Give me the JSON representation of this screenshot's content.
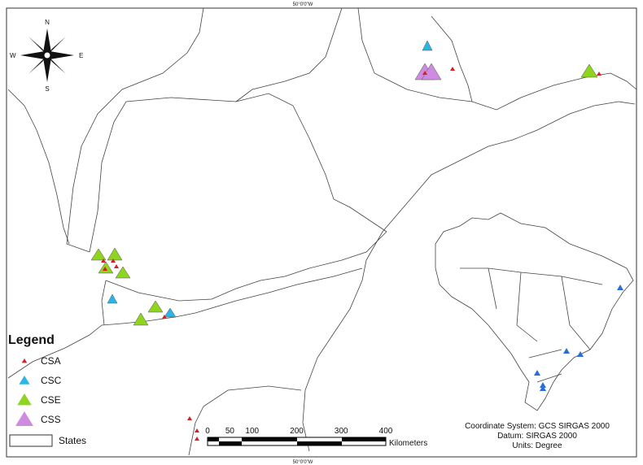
{
  "top_label": "50°0'0\"W",
  "bottom_label": "50°0'0\"W",
  "compass": {
    "n": "N",
    "s": "S",
    "e": "E",
    "w": "W"
  },
  "legend": {
    "title": "Legend",
    "items": [
      {
        "label": "CSA",
        "color": "#d62020"
      },
      {
        "label": "CSC",
        "color": "#29b6e6"
      },
      {
        "label": "CSE",
        "color": "#8fd41e"
      },
      {
        "label": "CSS",
        "color": "#cf8be0"
      }
    ],
    "states": "States"
  },
  "scale": {
    "ticks": [
      0,
      50,
      100,
      200,
      300,
      400
    ],
    "unit": "Kilometers"
  },
  "info": [
    "Coordinate System: GCS SIRGAS 2000",
    "Datum: SIRGAS 2000",
    "Units: Degree"
  ]
}
